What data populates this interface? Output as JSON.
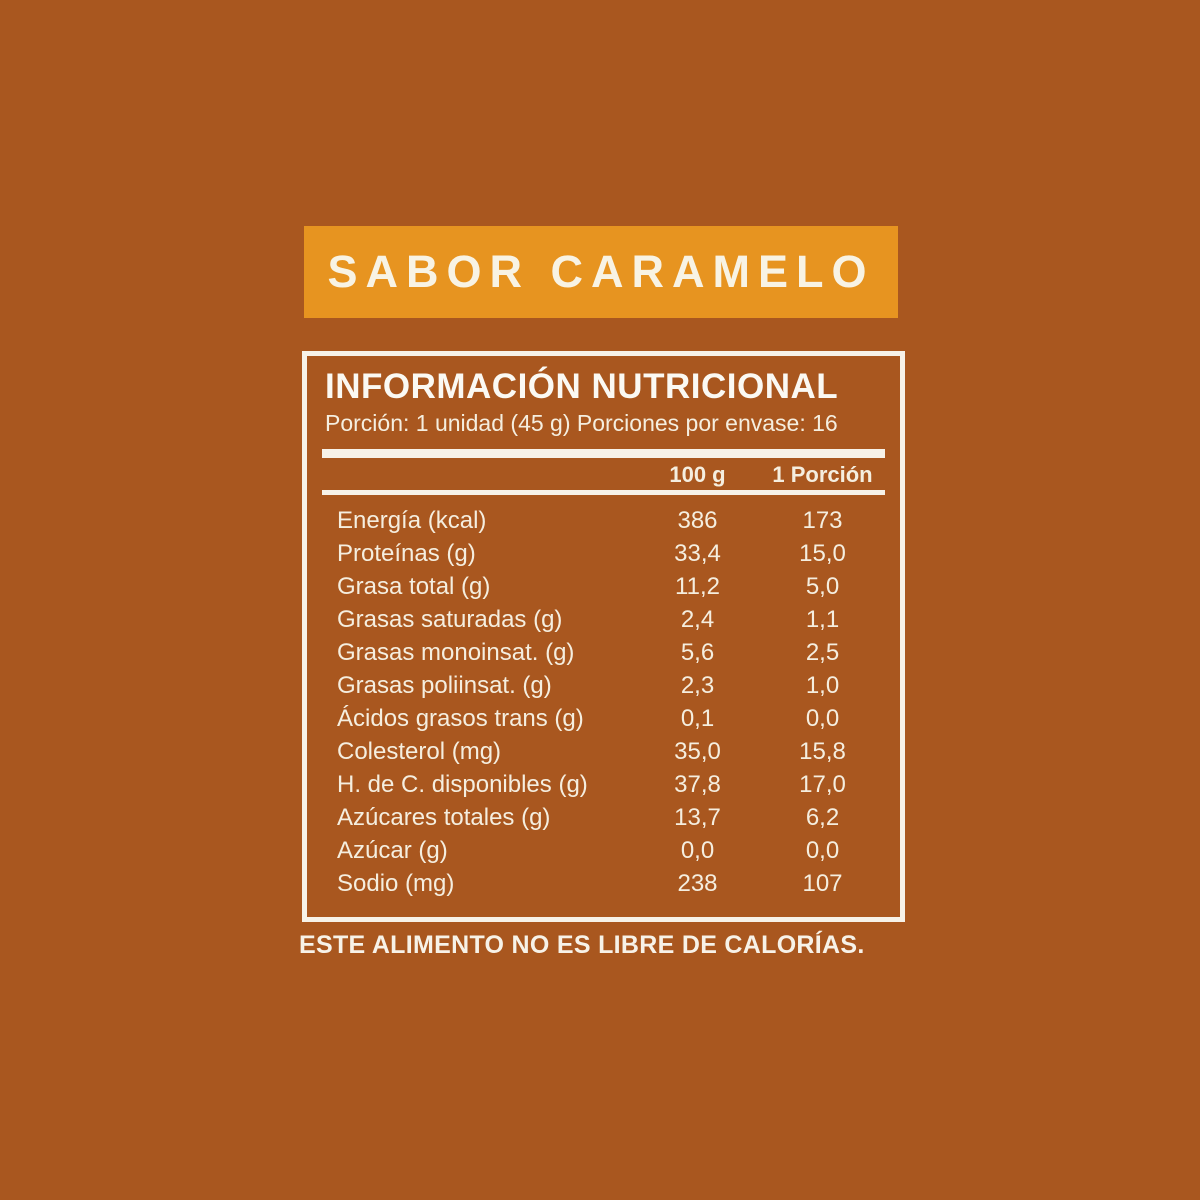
{
  "page": {
    "background_color": "#A9571F"
  },
  "banner": {
    "label": "SABOR CARAMELO",
    "background_color": "#E79420"
  },
  "panel": {
    "title": "INFORMACIÓN NUTRICIONAL",
    "serving_info": "Porción: 1 unidad (45 g) Porciones por envase: 16",
    "table": {
      "columns": [
        "100 g",
        "1 Porción"
      ],
      "rows": [
        {
          "label": "Energía (kcal)",
          "per_100g": "386",
          "per_portion": "173"
        },
        {
          "label": "Proteínas (g)",
          "per_100g": "33,4",
          "per_portion": "15,0"
        },
        {
          "label": "Grasa total (g)",
          "per_100g": "11,2",
          "per_portion": "5,0"
        },
        {
          "label": "Grasas saturadas (g)",
          "per_100g": "2,4",
          "per_portion": "1,1"
        },
        {
          "label": "Grasas monoinsat. (g)",
          "per_100g": "5,6",
          "per_portion": "2,5"
        },
        {
          "label": "Grasas poliinsat. (g)",
          "per_100g": "2,3",
          "per_portion": "1,0"
        },
        {
          "label": "Ácidos grasos trans (g)",
          "per_100g": "0,1",
          "per_portion": "0,0"
        },
        {
          "label": "Colesterol (mg)",
          "per_100g": "35,0",
          "per_portion": "15,8"
        },
        {
          "label": "H. de C. disponibles (g)",
          "per_100g": "37,8",
          "per_portion": "17,0"
        },
        {
          "label": "Azúcares totales (g)",
          "per_100g": "13,7",
          "per_portion": "6,2"
        },
        {
          "label": "Azúcar (g)",
          "per_100g": "0,0",
          "per_portion": "0,0"
        },
        {
          "label": "Sodio (mg)",
          "per_100g": "238",
          "per_portion": "107"
        }
      ]
    }
  },
  "footnote": "ESTE ALIMENTO NO ES LIBRE DE CALORÍAS."
}
